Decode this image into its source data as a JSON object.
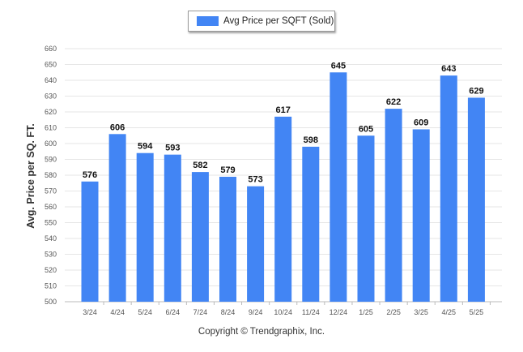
{
  "legend": {
    "label": "Avg Price per SQFT (Sold)"
  },
  "copyright": "Copyright © Trendgraphix, Inc.",
  "colors": {
    "bar": "#4285f4",
    "grid": "#e6e6e6",
    "axis": "#bbbbbb"
  },
  "chart_data": {
    "type": "bar",
    "title": "",
    "xlabel": "",
    "ylabel": "Avg. Price per SQ. FT.",
    "categories": [
      "3/24",
      "4/24",
      "5/24",
      "6/24",
      "7/24",
      "8/24",
      "9/24",
      "10/24",
      "11/24",
      "12/24",
      "1/25",
      "2/25",
      "3/25",
      "4/25",
      "5/25"
    ],
    "series": [
      {
        "name": "Avg Price per SQFT (Sold)",
        "values": [
          576,
          606,
          594,
          593,
          582,
          579,
          573,
          617,
          598,
          645,
          605,
          622,
          609,
          643,
          629
        ]
      }
    ],
    "ylim": [
      500,
      660
    ],
    "yticks": [
      500,
      510,
      520,
      530,
      540,
      550,
      560,
      570,
      580,
      590,
      600,
      610,
      620,
      630,
      640,
      650,
      660
    ],
    "grid": true,
    "legend_position": "top-center"
  }
}
